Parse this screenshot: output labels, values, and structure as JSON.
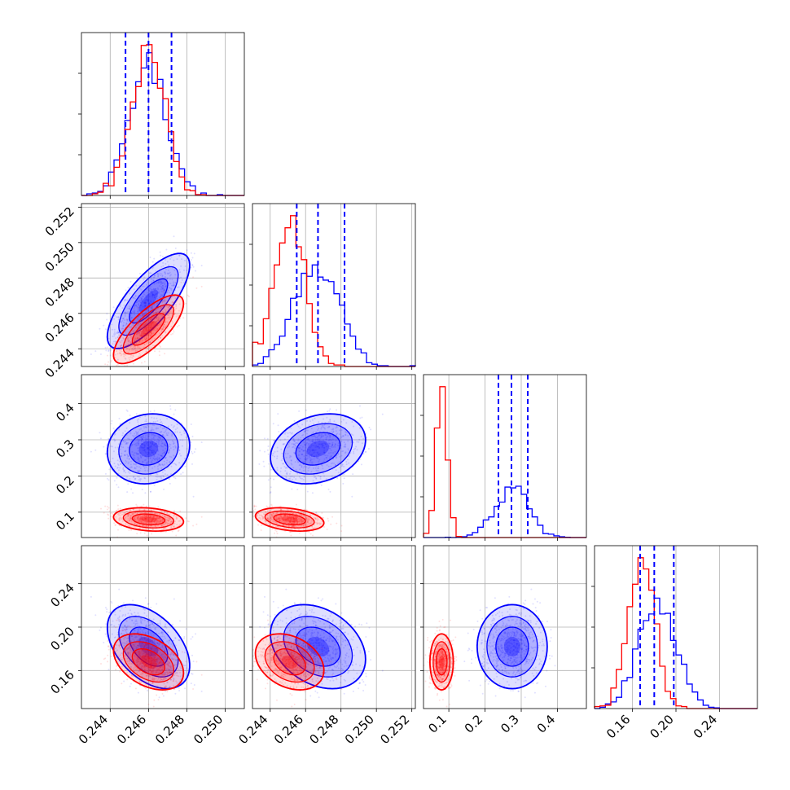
{
  "chart_data": {
    "type": "corner",
    "title": "",
    "n_params": 4,
    "grid": true,
    "params": [
      {
        "range": [
          0.2425,
          0.251
        ],
        "ticks": [
          0.244,
          0.246,
          0.248,
          0.25
        ],
        "tick_labels": [
          "0.244",
          "0.246",
          "0.248",
          "0.250"
        ]
      },
      {
        "range": [
          0.243,
          0.2522
        ],
        "ticks": [
          0.244,
          0.246,
          0.248,
          0.25,
          0.252
        ],
        "tick_labels": [
          "0.244",
          "0.246",
          "0.248",
          "0.250",
          "0.252"
        ]
      },
      {
        "range": [
          0.03,
          0.48
        ],
        "ticks": [
          0.1,
          0.2,
          0.3,
          0.4
        ],
        "tick_labels": [
          "0.1",
          "0.2",
          "0.3",
          "0.4"
        ]
      },
      {
        "range": [
          0.125,
          0.275
        ],
        "ticks": [
          0.16,
          0.2,
          0.24
        ],
        "tick_labels": [
          "0.16",
          "0.20",
          "0.24"
        ]
      }
    ],
    "series": [
      {
        "color": "#0000ff",
        "mean": [
          0.246,
          0.2467,
          0.275,
          0.182
        ],
        "sd": [
          0.001,
          0.00125,
          0.045,
          0.018
        ],
        "corr": [
          [
            1,
            0.75,
            0.1,
            -0.45
          ],
          [
            0.75,
            1,
            0.25,
            -0.3
          ],
          [
            0.1,
            0.25,
            1,
            0.0
          ],
          [
            -0.45,
            -0.3,
            0.0,
            1
          ]
        ]
      },
      {
        "color": "#ff0000",
        "mean": [
          0.246,
          0.2451,
          0.08,
          0.168
        ],
        "sd": [
          0.00085,
          0.0009,
          0.015,
          0.012
        ],
        "corr": [
          [
            1,
            0.75,
            -0.2,
            -0.4
          ],
          [
            0.75,
            1,
            -0.3,
            -0.3
          ],
          [
            -0.2,
            -0.3,
            1,
            0.0
          ],
          [
            -0.4,
            -0.3,
            0.0,
            1
          ]
        ]
      }
    ],
    "quantile_lines": {
      "color": "#0000ff",
      "style": "dashed",
      "values": [
        [
          0.2448,
          0.246,
          0.2472
        ],
        [
          0.2455,
          0.2467,
          0.2482
        ],
        [
          0.237,
          0.273,
          0.318
        ],
        [
          0.167,
          0.18,
          0.198
        ]
      ]
    }
  }
}
